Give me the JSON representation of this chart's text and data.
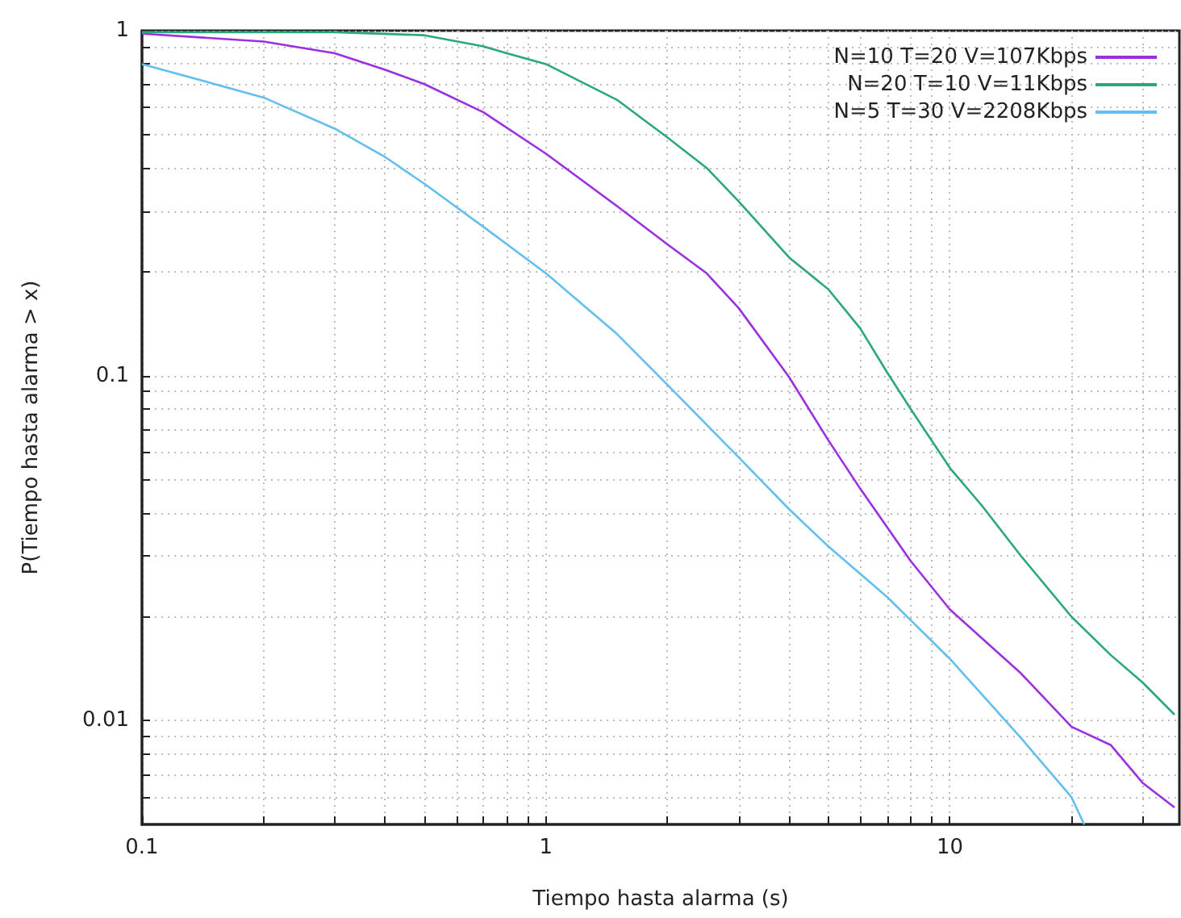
{
  "chart_data": {
    "type": "line",
    "xlabel": "Tiempo hasta alarma (s)",
    "ylabel": "P(Tiempo hasta alarma > x)",
    "log": "xy",
    "grid": true,
    "legend": "top right",
    "line_style": "solid",
    "marker": "none",
    "xlim": [
      0.1,
      37
    ],
    "ylim": [
      0.005,
      1
    ],
    "xticks": [
      0.1,
      {
        "value": 0.2,
        "label": null
      },
      {
        "value": 0.3,
        "label": null
      },
      {
        "value": 0.4,
        "label": null
      },
      {
        "value": 0.5,
        "label": null
      },
      {
        "value": 0.6,
        "label": null
      },
      {
        "value": 0.7,
        "label": null
      },
      {
        "value": 0.8,
        "label": null
      },
      {
        "value": 0.9,
        "label": null
      },
      1,
      {
        "value": 2,
        "label": null
      },
      {
        "value": 3,
        "label": null
      },
      {
        "value": 4,
        "label": null
      },
      {
        "value": 5,
        "label": null
      },
      {
        "value": 6,
        "label": null
      },
      {
        "value": 7,
        "label": null
      },
      {
        "value": 8,
        "label": null
      },
      {
        "value": 9,
        "label": null
      },
      10,
      {
        "value": 20,
        "label": null
      },
      {
        "value": 30,
        "label": null
      }
    ],
    "yticks": [
      {
        "value": 0.006,
        "label": null
      },
      {
        "value": 0.007,
        "label": null
      },
      {
        "value": 0.008,
        "label": null
      },
      {
        "value": 0.009,
        "label": null
      },
      0.01,
      {
        "value": 0.02,
        "label": null
      },
      {
        "value": 0.03,
        "label": null
      },
      {
        "value": 0.04,
        "label": null
      },
      {
        "value": 0.05,
        "label": null
      },
      {
        "value": 0.06,
        "label": null
      },
      {
        "value": 0.07,
        "label": null
      },
      {
        "value": 0.08,
        "label": null
      },
      {
        "value": 0.09,
        "label": null
      },
      0.1,
      {
        "value": 0.2,
        "label": null
      },
      {
        "value": 0.3,
        "label": null
      },
      {
        "value": 0.4,
        "label": null
      },
      {
        "value": 0.5,
        "label": null
      },
      {
        "value": 0.6,
        "label": null
      },
      {
        "value": 0.7,
        "label": null
      },
      {
        "value": 0.8,
        "label": null
      },
      {
        "value": 0.9,
        "label": null
      },
      1
    ],
    "series": [
      {
        "name": "N=10 T=20 V=107Kbps",
        "color": "#9b30e0",
        "x": [
          0.1,
          0.2,
          0.3,
          0.4,
          0.5,
          0.7,
          1,
          1.5,
          2,
          2.5,
          3,
          4,
          5,
          6,
          8,
          10,
          15,
          20,
          25,
          30,
          36
        ],
        "values": [
          0.98,
          0.93,
          0.86,
          0.77,
          0.7,
          0.58,
          0.44,
          0.31,
          0.24,
          0.198,
          0.157,
          0.099,
          0.065,
          0.047,
          0.029,
          0.021,
          0.0137,
          0.0096,
          0.0085,
          0.0066,
          0.0056
        ]
      },
      {
        "name": "N=20 T=10 V=11Kbps",
        "color": "#2aa77c",
        "x": [
          0.1,
          0.3,
          0.5,
          0.7,
          0.8,
          1,
          1.5,
          2,
          2.5,
          3,
          4,
          5,
          6,
          7,
          8,
          10,
          12,
          15,
          20,
          25,
          30,
          36
        ],
        "values": [
          0.99,
          0.99,
          0.97,
          0.9,
          0.86,
          0.8,
          0.63,
          0.49,
          0.4,
          0.32,
          0.22,
          0.178,
          0.137,
          0.102,
          0.08,
          0.054,
          0.042,
          0.03,
          0.02,
          0.0155,
          0.0129,
          0.0104
        ]
      },
      {
        "name": "N=5 T=30 V=2208Kbps",
        "color": "#63bfee",
        "x": [
          0.1,
          0.2,
          0.3,
          0.4,
          0.5,
          0.7,
          1,
          1.5,
          2,
          3,
          4,
          5,
          7,
          10,
          15,
          20,
          21.5
        ],
        "values": [
          0.8,
          0.64,
          0.52,
          0.43,
          0.36,
          0.27,
          0.198,
          0.132,
          0.094,
          0.058,
          0.041,
          0.032,
          0.0228,
          0.0151,
          0.0089,
          0.006,
          0.005
        ]
      }
    ]
  }
}
